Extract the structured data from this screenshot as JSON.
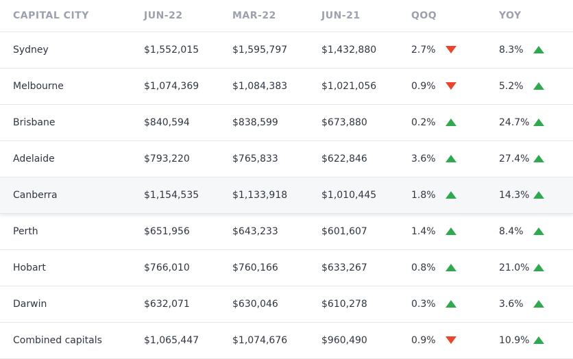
{
  "table": {
    "headers": [
      "CAPITAL CITY",
      "JUN-22",
      "MAR-22",
      "JUN-21",
      "QOQ",
      "YOY"
    ],
    "rows": [
      [
        "Sydney",
        "$1,552,015",
        "$1,595,797",
        "$1,432,880",
        "2.7%",
        "8.3%"
      ],
      [
        "Melbourne",
        "$1,074,369",
        "$1,084,383",
        "$1,021,056",
        "0.9%",
        "5.2%"
      ],
      [
        "Brisbane",
        "$840,594",
        "$838,599",
        "$673,880",
        "0.2%",
        "24.7%"
      ],
      [
        "Adelaide",
        "$793,220",
        "$765,833",
        "$622,846",
        "3.6%",
        "27.4%"
      ],
      [
        "Canberra",
        "$1,154,535",
        "$1,133,918",
        "$1,010,445",
        "1.8%",
        "14.3%"
      ],
      [
        "Perth",
        "$651,956",
        "$643,233",
        "$601,607",
        "1.4%",
        "8.4%"
      ],
      [
        "Hobart",
        "$766,010",
        "$760,166",
        "$633,267",
        "0.8%",
        "21.0%"
      ],
      [
        "Darwin",
        "$632,071",
        "$630,046",
        "$610,278",
        "0.3%",
        "3.6%"
      ],
      [
        "Combined capitals",
        "$1,065,447",
        "$1,074,676",
        "$960,490",
        "0.9%",
        "10.9%"
      ]
    ],
    "trends": [
      [
        "down",
        "up"
      ],
      [
        "down",
        "up"
      ],
      [
        "up",
        "up"
      ],
      [
        "up",
        "up"
      ],
      [
        "up",
        "up"
      ],
      [
        "up",
        "up"
      ],
      [
        "up",
        "up"
      ],
      [
        "up",
        "up"
      ],
      [
        "down",
        "up"
      ]
    ],
    "highlighted_row": 4
  }
}
